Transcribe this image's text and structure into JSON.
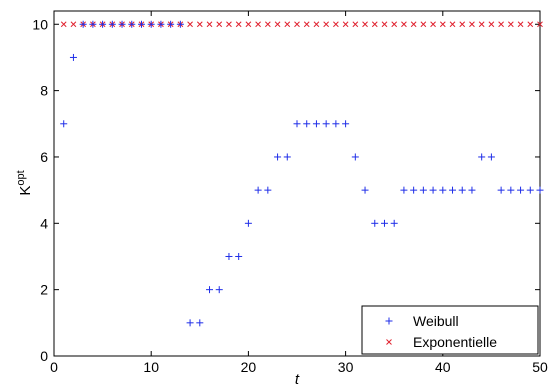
{
  "chart_data": {
    "type": "scatter",
    "title": "",
    "xlabel": "t",
    "ylabel_main": "K",
    "ylabel_sup": "opt",
    "xlim": [
      0,
      50
    ],
    "ylim": [
      0,
      10.4
    ],
    "xticks": [
      0,
      10,
      20,
      30,
      40,
      50
    ],
    "yticks": [
      0,
      2,
      4,
      6,
      8,
      10
    ],
    "grid": false,
    "legend_position": "bottom-right",
    "series": [
      {
        "name": "Weibull",
        "marker": "+",
        "color": "#1f2ee8",
        "x": [
          1,
          2,
          3,
          4,
          5,
          6,
          7,
          8,
          9,
          10,
          11,
          12,
          13,
          14,
          15,
          16,
          17,
          18,
          19,
          20,
          21,
          22,
          23,
          24,
          25,
          26,
          27,
          28,
          29,
          30,
          31,
          32,
          33,
          34,
          35,
          36,
          37,
          38,
          39,
          40,
          41,
          42,
          43,
          44,
          45,
          46,
          47,
          48,
          49,
          50
        ],
        "y": [
          7,
          9,
          10,
          10,
          10,
          10,
          10,
          10,
          10,
          10,
          10,
          10,
          10,
          1,
          1,
          2,
          2,
          3,
          3,
          4,
          5,
          5,
          6,
          6,
          7,
          7,
          7,
          7,
          7,
          7,
          6,
          5,
          4,
          4,
          4,
          5,
          5,
          5,
          5,
          5,
          5,
          5,
          5,
          6,
          6,
          5,
          5,
          5,
          5,
          5
        ]
      },
      {
        "name": "Exponentielle",
        "marker": "x",
        "color": "#e0202e",
        "x": [
          1,
          2,
          3,
          4,
          5,
          6,
          7,
          8,
          9,
          10,
          11,
          12,
          13,
          14,
          15,
          16,
          17,
          18,
          19,
          20,
          21,
          22,
          23,
          24,
          25,
          26,
          27,
          28,
          29,
          30,
          31,
          32,
          33,
          34,
          35,
          36,
          37,
          38,
          39,
          40,
          41,
          42,
          43,
          44,
          45,
          46,
          47,
          48,
          49,
          50
        ],
        "y": [
          10,
          10,
          10,
          10,
          10,
          10,
          10,
          10,
          10,
          10,
          10,
          10,
          10,
          10,
          10,
          10,
          10,
          10,
          10,
          10,
          10,
          10,
          10,
          10,
          10,
          10,
          10,
          10,
          10,
          10,
          10,
          10,
          10,
          10,
          10,
          10,
          10,
          10,
          10,
          10,
          10,
          10,
          10,
          10,
          10,
          10,
          10,
          10,
          10,
          10
        ]
      }
    ]
  }
}
